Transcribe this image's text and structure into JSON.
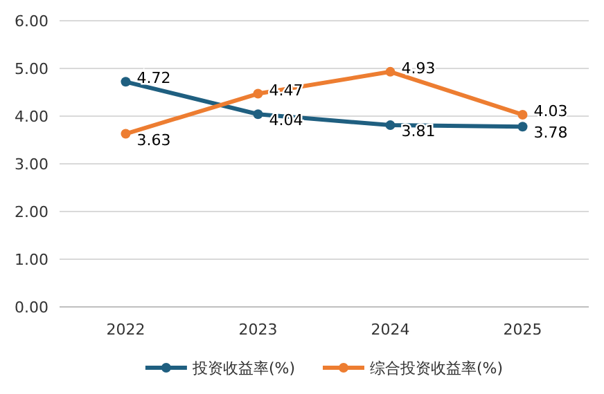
{
  "chart_data": {
    "type": "line",
    "categories": [
      "2022",
      "2023",
      "2024",
      "2025"
    ],
    "series": [
      {
        "name": "投资收益率(%)",
        "color": "#1f5f80",
        "values": [
          4.72,
          4.04,
          3.81,
          3.78
        ]
      },
      {
        "name": "综合投资收益率(%)",
        "color": "#ed7d31",
        "values": [
          3.63,
          4.47,
          4.93,
          4.03
        ]
      }
    ],
    "ylim": [
      0,
      6
    ],
    "yticks": [
      {
        "value": 0,
        "label": "0.00"
      },
      {
        "value": 1,
        "label": "1.00"
      },
      {
        "value": 2,
        "label": "2.00"
      },
      {
        "value": 3,
        "label": "3.00"
      },
      {
        "value": 4,
        "label": "4.00"
      },
      {
        "value": 5,
        "label": "5.00"
      },
      {
        "value": 6,
        "label": "6.00"
      }
    ],
    "grid": "y",
    "legend": "bottom",
    "marker": "circle",
    "line_style": "solid",
    "data_labels": true
  }
}
